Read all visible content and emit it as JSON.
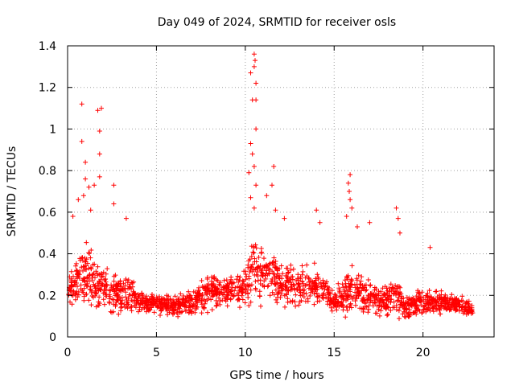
{
  "chart_data": {
    "type": "scatter",
    "title": "Day 049 of 2024, SRMTID for receiver osls",
    "xlabel": "GPS time / hours",
    "ylabel": "SRMTID / TECUs",
    "xlim": [
      0,
      24
    ],
    "ylim": [
      0,
      1.4
    ],
    "x_ticks": [
      0,
      5,
      10,
      15,
      20
    ],
    "y_ticks": [
      0,
      0.2,
      0.4,
      0.6,
      0.8,
      1,
      1.2,
      1.4
    ],
    "x_tick_labels": [
      "0",
      "5",
      "10",
      "15",
      "20"
    ],
    "y_tick_labels": [
      "0",
      "0.2",
      "0.4",
      "0.6",
      "0.8",
      "1",
      "1.2",
      "1.4"
    ],
    "grid": true,
    "marker": "+",
    "color": "#ff0000",
    "series": [
      {
        "name": "SRMTID",
        "profile_x": [
          0.0,
          0.5,
          1.0,
          1.5,
          2.0,
          2.5,
          3.0,
          3.5,
          4.0,
          5.0,
          6.0,
          7.0,
          8.0,
          9.0,
          10.0,
          10.5,
          11.0,
          11.5,
          12.0,
          13.0,
          14.0,
          15.0,
          16.0,
          17.0,
          18.0,
          18.5,
          19.0,
          20.0,
          21.0,
          22.0,
          22.8
        ],
        "profile_center": [
          0.22,
          0.28,
          0.3,
          0.25,
          0.25,
          0.22,
          0.2,
          0.22,
          0.17,
          0.16,
          0.15,
          0.16,
          0.22,
          0.22,
          0.24,
          0.35,
          0.3,
          0.3,
          0.26,
          0.24,
          0.26,
          0.17,
          0.22,
          0.18,
          0.17,
          0.2,
          0.14,
          0.17,
          0.17,
          0.16,
          0.13
        ],
        "profile_spread": [
          0.1,
          0.15,
          0.18,
          0.16,
          0.15,
          0.14,
          0.12,
          0.12,
          0.08,
          0.07,
          0.06,
          0.08,
          0.11,
          0.1,
          0.12,
          0.25,
          0.18,
          0.17,
          0.14,
          0.12,
          0.12,
          0.08,
          0.14,
          0.1,
          0.1,
          0.13,
          0.07,
          0.08,
          0.07,
          0.06,
          0.05
        ],
        "samples_per_hour": 80,
        "highlights": [
          [
            0.8,
            1.12
          ],
          [
            0.8,
            0.94
          ],
          [
            1.0,
            0.84
          ],
          [
            1.0,
            0.76
          ],
          [
            0.9,
            0.68
          ],
          [
            1.2,
            0.72
          ],
          [
            1.7,
            1.09
          ],
          [
            1.9,
            1.1
          ],
          [
            1.8,
            0.99
          ],
          [
            1.8,
            0.88
          ],
          [
            1.8,
            0.77
          ],
          [
            1.5,
            0.73
          ],
          [
            2.6,
            0.73
          ],
          [
            2.6,
            0.64
          ],
          [
            3.3,
            0.57
          ],
          [
            0.3,
            0.58
          ],
          [
            0.6,
            0.66
          ],
          [
            1.3,
            0.61
          ],
          [
            10.3,
            1.27
          ],
          [
            10.5,
            1.36
          ],
          [
            10.55,
            1.33
          ],
          [
            10.5,
            1.3
          ],
          [
            10.6,
            1.22
          ],
          [
            10.6,
            1.14
          ],
          [
            10.4,
            1.14
          ],
          [
            10.6,
            1.0
          ],
          [
            10.3,
            0.93
          ],
          [
            10.4,
            0.88
          ],
          [
            10.5,
            0.82
          ],
          [
            10.2,
            0.79
          ],
          [
            10.6,
            0.73
          ],
          [
            10.3,
            0.67
          ],
          [
            10.5,
            0.62
          ],
          [
            11.6,
            0.82
          ],
          [
            11.5,
            0.73
          ],
          [
            11.2,
            0.68
          ],
          [
            11.7,
            0.61
          ],
          [
            12.2,
            0.57
          ],
          [
            14.0,
            0.61
          ],
          [
            14.2,
            0.55
          ],
          [
            15.9,
            0.78
          ],
          [
            15.8,
            0.74
          ],
          [
            15.85,
            0.7
          ],
          [
            15.9,
            0.66
          ],
          [
            16.0,
            0.62
          ],
          [
            15.7,
            0.58
          ],
          [
            16.3,
            0.53
          ],
          [
            17.0,
            0.55
          ],
          [
            18.5,
            0.62
          ],
          [
            18.6,
            0.57
          ],
          [
            18.7,
            0.5
          ],
          [
            20.4,
            0.43
          ]
        ]
      }
    ]
  }
}
